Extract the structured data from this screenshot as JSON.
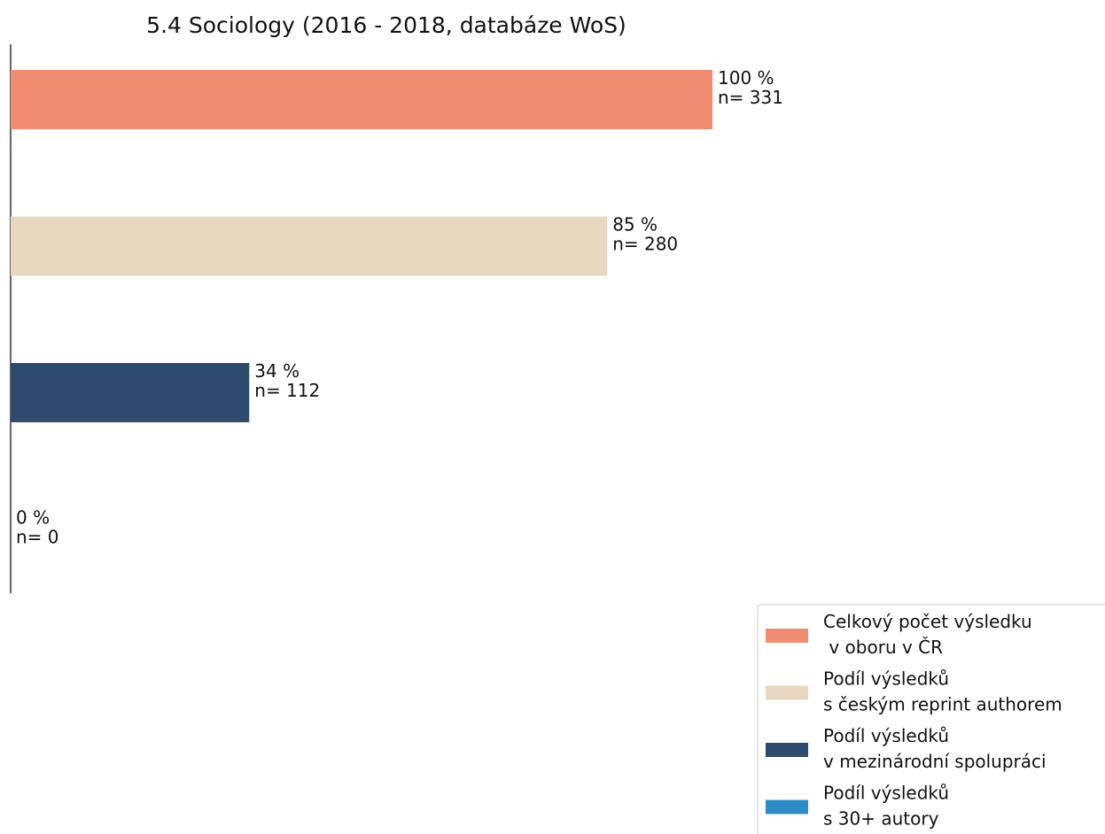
{
  "chart_data": {
    "type": "barh",
    "title": "5.4 Sociology (2016 - 2018, databáze WoS)",
    "xlim": [
      0,
      100
    ],
    "series": [
      {
        "name": "Celkový počet výsledku\n v oboru v ČR",
        "color": "#ef8c72",
        "values": [
          100
        ],
        "value_labels": [
          "100 %"
        ],
        "n_labels": [
          "n= 331"
        ]
      },
      {
        "name": "Podíl výsledků\ns českým reprint authorem",
        "color": "#e9d8c1",
        "values": [
          85
        ],
        "value_labels": [
          "85 %"
        ],
        "n_labels": [
          "n= 280"
        ]
      },
      {
        "name": "Podíl výsledků\nv mezinárodní spolupráci",
        "color": "#2e4a6d",
        "values": [
          34
        ],
        "value_labels": [
          "34 %"
        ],
        "n_labels": [
          "n= 112"
        ]
      },
      {
        "name": "Podíl výsledků\ns 30+ autory",
        "color": "#2e8bc6",
        "values": [
          0
        ],
        "value_labels": [
          "0 %"
        ],
        "n_labels": [
          "n= 0"
        ]
      }
    ],
    "legend": "lower right"
  }
}
